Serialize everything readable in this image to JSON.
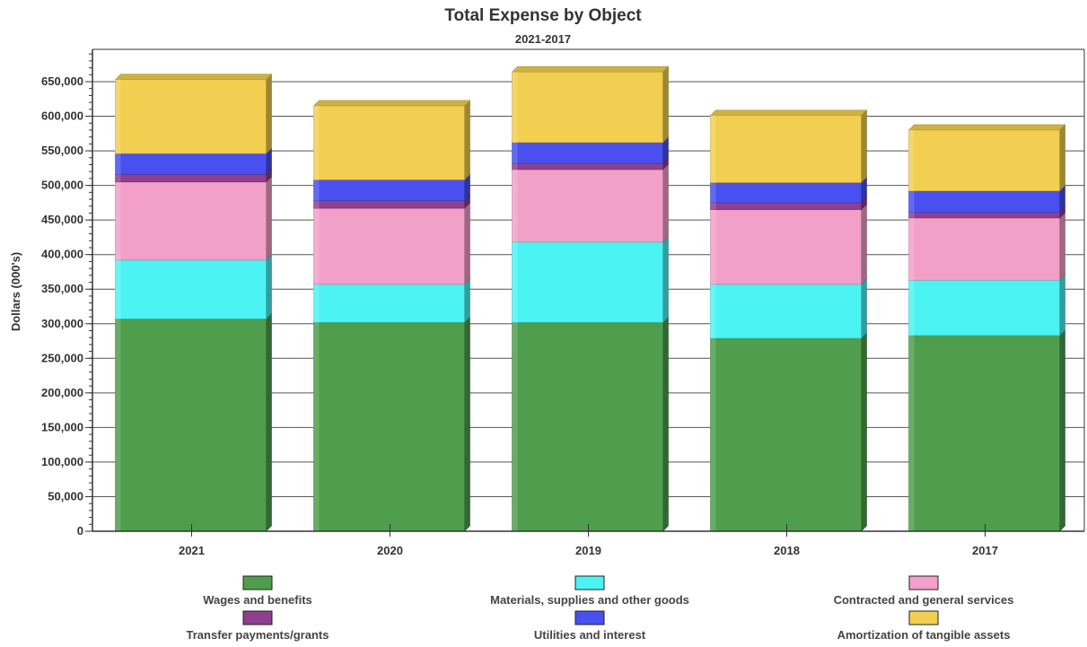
{
  "chart_data": {
    "type": "bar",
    "stacked": true,
    "title": "Total Expense by Object",
    "subtitle": "2021-2017",
    "xlabel": "",
    "ylabel": "Dollars (000's)",
    "ylim": [
      0,
      650000
    ],
    "ytick_step": 50000,
    "yticks": [
      "0",
      "50,000",
      "100,000",
      "150,000",
      "200,000",
      "250,000",
      "300,000",
      "350,000",
      "400,000",
      "450,000",
      "500,000",
      "550,000",
      "600,000",
      "650,000"
    ],
    "grid": true,
    "legend_position": "bottom",
    "categories": [
      "2021",
      "2020",
      "2019",
      "2018",
      "2017"
    ],
    "series": [
      {
        "name": "Wages and benefits",
        "color": "#4e9e4e",
        "values": [
          307000,
          302000,
          302000,
          279000,
          283000
        ]
      },
      {
        "name": "Materials, supplies and other goods",
        "color": "#4cf3f3",
        "values": [
          85000,
          55000,
          116000,
          78000,
          80000
        ]
      },
      {
        "name": "Contracted and general services",
        "color": "#f2a0c8",
        "values": [
          113000,
          110000,
          105000,
          108000,
          90000
        ]
      },
      {
        "name": "Transfer payments/grants",
        "color": "#8e3f8e",
        "values": [
          11000,
          11000,
          9000,
          10000,
          8000
        ]
      },
      {
        "name": "Utilities and interest",
        "color": "#4a4ff0",
        "values": [
          30000,
          30000,
          30000,
          29000,
          31000
        ]
      },
      {
        "name": "Amortization of tangible assets",
        "color": "#f2cf50",
        "values": [
          107000,
          107000,
          102000,
          97000,
          88000
        ]
      }
    ]
  }
}
